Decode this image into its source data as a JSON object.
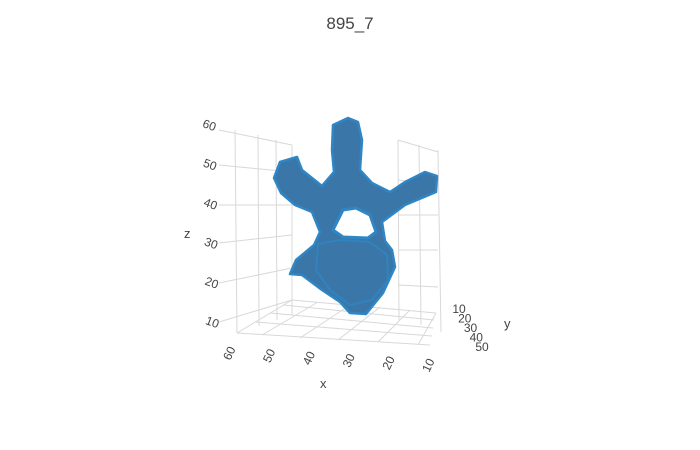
{
  "chart_data": {
    "type": "mesh3d",
    "title": "895_7",
    "mesh_color": "#3a77a8",
    "mesh_edge_color": "#2f86c4",
    "axes": {
      "x": {
        "label": "x",
        "ticks": [
          "60",
          "50",
          "40",
          "30",
          "20",
          "10"
        ]
      },
      "y": {
        "label": "y",
        "ticks": [
          "10",
          "20",
          "30",
          "40",
          "50"
        ]
      },
      "z": {
        "label": "z",
        "ticks": [
          "60",
          "50",
          "40",
          "30",
          "20",
          "10"
        ]
      }
    },
    "grid": true
  }
}
